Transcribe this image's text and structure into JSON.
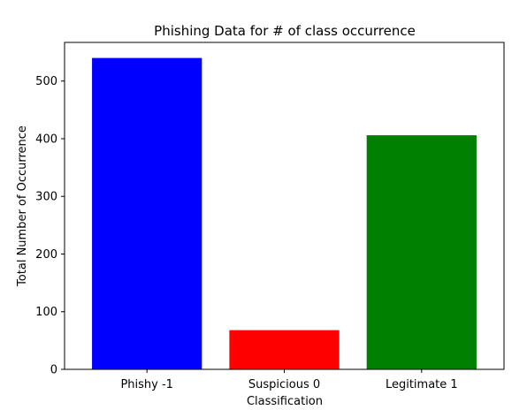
{
  "chart_data": {
    "type": "bar",
    "title": "Phishing Data for # of class occurrence",
    "xlabel": "Classification",
    "ylabel": "Total Number of Occurrence",
    "categories": [
      "Phishy -1",
      "Suspicious 0",
      "Legitimate 1"
    ],
    "values": [
      540,
      68,
      406
    ],
    "colors": [
      "#0000ff",
      "#ff0000",
      "#008000"
    ],
    "ylim": [
      0,
      567
    ],
    "yticks": [
      0,
      100,
      200,
      300,
      400,
      500
    ],
    "grid": false
  }
}
